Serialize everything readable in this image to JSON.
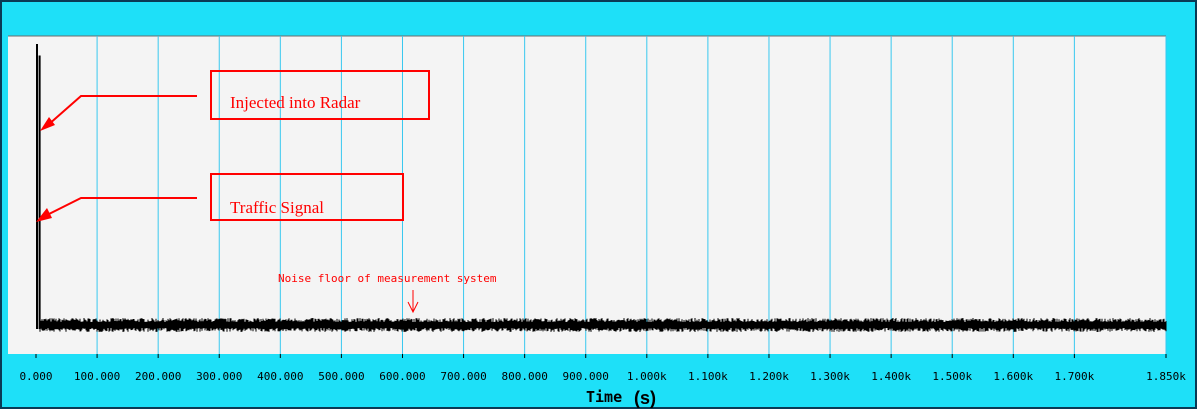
{
  "chart_data": {
    "type": "line",
    "title": "",
    "xlabel": "Time",
    "xlabel_unit": "(s)",
    "ylabel": "",
    "xlim": [
      0,
      1850
    ],
    "x_ticks": [
      0,
      100,
      200,
      300,
      400,
      500,
      600,
      700,
      800,
      900,
      1000,
      1100,
      1200,
      1300,
      1400,
      1500,
      1600,
      1700,
      1850
    ],
    "x_tick_labels": [
      "0.000",
      "100.000",
      "200.000",
      "300.000",
      "400.000",
      "500.000",
      "600.000",
      "700.000",
      "800.000",
      "900.000",
      "1.000k",
      "1.100k",
      "1.200k",
      "1.300k",
      "1.400k",
      "1.500k",
      "1.600k",
      "1.700k",
      "1.850k"
    ],
    "grid": true,
    "series": [
      {
        "x": [
          0,
          1,
          2,
          3,
          4,
          1850
        ],
        "y": [
          1.0,
          0.96,
          0.02,
          0.02,
          0.02,
          0.02
        ]
      }
    ],
    "annotations": [
      {
        "text": "Injected into Radar"
      },
      {
        "text": "Traffic Signal"
      },
      {
        "text": "Noise floor of measurement system"
      }
    ]
  },
  "colors": {
    "frame": "#1ee0f8",
    "plot_background": "#f4f4f4",
    "grid": "#38c8ef",
    "signal": "#000000",
    "annotation": "#ff0000"
  }
}
